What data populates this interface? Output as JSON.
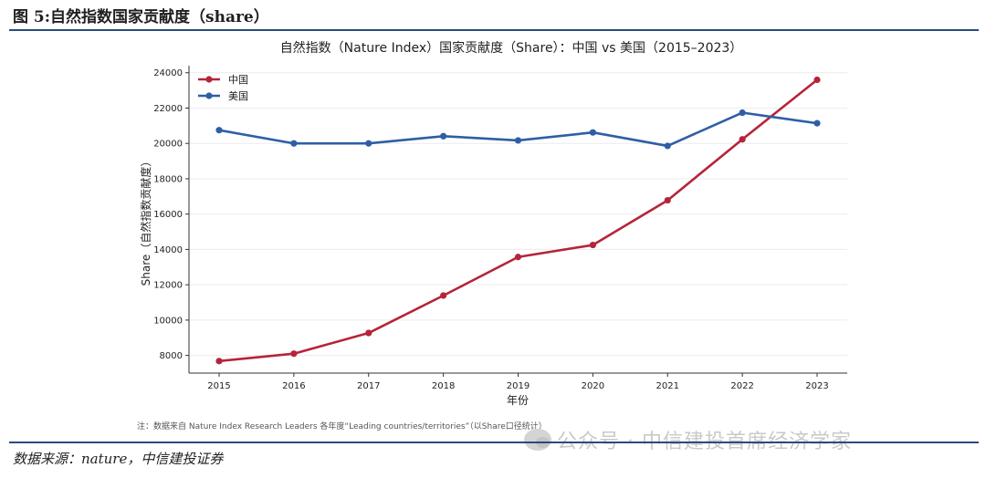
{
  "figure": {
    "header": "图 5:自然指数国家贡献度（share）",
    "source": "数据来源：nature，中信建投证券",
    "note": "注：数据来自 Nature Index Research Leaders 各年度“Leading countries/territories”（以Share口径统计）",
    "watermark": "公众号 · 中信建投首席经济学家"
  },
  "chart_data": {
    "type": "line",
    "title": "自然指数（Nature Index）国家贡献度（Share）：中国 vs 美国（2015–2023）",
    "xlabel": "年份",
    "ylabel": "Share（自然指数贡献度）",
    "x": [
      "2015",
      "2016",
      "2017",
      "2018",
      "2019",
      "2020",
      "2021",
      "2022",
      "2023"
    ],
    "ylim": [
      7000,
      24400
    ],
    "yticks": [
      "8000",
      "10000",
      "12000",
      "14000",
      "16000",
      "18000",
      "20000",
      "22000",
      "24000"
    ],
    "grid": true,
    "legend_position": "top-left",
    "series": [
      {
        "name": "中国",
        "color": "#b5243a",
        "values": [
          7680,
          8100,
          9270,
          11390,
          13570,
          14250,
          16780,
          20230,
          23600
        ]
      },
      {
        "name": "美国",
        "color": "#2e5fa5",
        "values": [
          20750,
          20000,
          20000,
          20410,
          20170,
          20620,
          19860,
          21740,
          21140
        ]
      }
    ]
  }
}
